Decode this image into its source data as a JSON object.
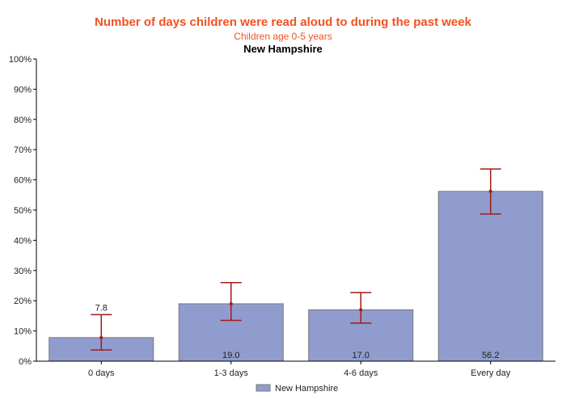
{
  "chart_data": {
    "type": "bar",
    "title": "Number of days children were read aloud to during the past week",
    "subtitle": "Children age 0-5 years",
    "region": "New Hampshire",
    "categories": [
      "0 days",
      "1-3 days",
      "4-6 days",
      "Every day"
    ],
    "series": [
      {
        "name": "New Hampshire",
        "values": [
          7.8,
          19.0,
          17.0,
          56.2
        ],
        "labels": [
          "7.8",
          "19.0",
          "17.0",
          "56.2"
        ],
        "ci_lower": [
          3.7,
          13.5,
          12.6,
          48.7
        ],
        "ci_upper": [
          15.4,
          26.0,
          22.7,
          63.6
        ],
        "color": "#919cce"
      }
    ],
    "error_bar_color": "#a31a1a",
    "ylim": [
      0,
      100
    ],
    "yticks": [
      "0%",
      "10%",
      "20%",
      "30%",
      "40%",
      "50%",
      "60%",
      "70%",
      "80%",
      "90%",
      "100%"
    ],
    "grid": false,
    "legend": "bottom"
  }
}
